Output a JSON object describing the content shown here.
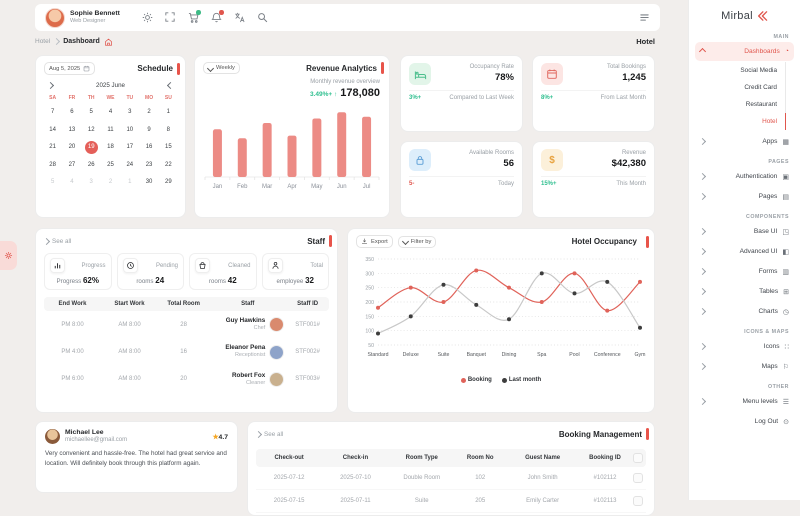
{
  "accent_color": "#e8544a",
  "header": {
    "user_name": "Sophie Bennett",
    "user_role": "Web Designer",
    "icons": [
      "sun-icon",
      "fullscreen-icon",
      "cart-icon",
      "notifications-icon",
      "translate-icon",
      "search-icon"
    ],
    "badges": {
      "cart-icon": "#3dba85",
      "notifications-icon": "#e0564d"
    },
    "menu_icon": "menu-icon"
  },
  "breadcrumb": {
    "parent": "Hotel",
    "current": "Dashboard"
  },
  "page_title": "Hotel",
  "sidebar": {
    "logo": "Mirbal",
    "sections": [
      {
        "label": "MAIN",
        "items": [
          {
            "label": "Dashboards",
            "icon": "◔",
            "expanded": true,
            "active": true,
            "children": [
              {
                "label": "Social Media"
              },
              {
                "label": "Credit Card"
              },
              {
                "label": "Restaurant"
              },
              {
                "label": "Hotel",
                "active": true
              }
            ]
          },
          {
            "label": "Apps",
            "icon": "▦",
            "chevron": true
          }
        ]
      },
      {
        "label": "PAGES",
        "items": [
          {
            "label": "Authentication",
            "icon": "▣",
            "chevron": true
          },
          {
            "label": "Pages",
            "icon": "▤",
            "chevron": true
          }
        ]
      },
      {
        "label": "COMPONENTS",
        "items": [
          {
            "label": "Base UI",
            "icon": "◳",
            "chevron": true
          },
          {
            "label": "Advanced UI",
            "icon": "◧",
            "chevron": true
          },
          {
            "label": "Forms",
            "icon": "▥",
            "chevron": true
          },
          {
            "label": "Tables",
            "icon": "⊞",
            "chevron": true
          },
          {
            "label": "Charts",
            "icon": "◷",
            "chevron": true
          }
        ]
      },
      {
        "label": "ICONS & MAPS",
        "items": [
          {
            "label": "Icons",
            "icon": "∷",
            "chevron": true
          },
          {
            "label": "Maps",
            "icon": "⚐",
            "chevron": true
          }
        ]
      },
      {
        "label": "OTHER",
        "items": [
          {
            "label": "Menu levels",
            "icon": "☰",
            "chevron": true
          },
          {
            "label": "Log Out",
            "icon": "⊙"
          }
        ]
      }
    ]
  },
  "schedule": {
    "title": "Schedule",
    "date_value": "Aug 5, 2025",
    "month_label": "2025 June",
    "weekdays": [
      "SA",
      "FR",
      "TH",
      "WE",
      "TU",
      "MO",
      "SU"
    ],
    "weeks": [
      [
        {
          "d": "7"
        },
        {
          "d": "6"
        },
        {
          "d": "5"
        },
        {
          "d": "4"
        },
        {
          "d": "3"
        },
        {
          "d": "2"
        },
        {
          "d": "1"
        }
      ],
      [
        {
          "d": "14"
        },
        {
          "d": "13"
        },
        {
          "d": "12"
        },
        {
          "d": "11"
        },
        {
          "d": "10"
        },
        {
          "d": "9"
        },
        {
          "d": "8"
        }
      ],
      [
        {
          "d": "21"
        },
        {
          "d": "20"
        },
        {
          "d": "19",
          "selected": true
        },
        {
          "d": "18"
        },
        {
          "d": "17"
        },
        {
          "d": "16"
        },
        {
          "d": "15"
        }
      ],
      [
        {
          "d": "28"
        },
        {
          "d": "27"
        },
        {
          "d": "26"
        },
        {
          "d": "25"
        },
        {
          "d": "24"
        },
        {
          "d": "23"
        },
        {
          "d": "22"
        }
      ],
      [
        {
          "d": "5",
          "muted": true
        },
        {
          "d": "4",
          "muted": true
        },
        {
          "d": "3",
          "muted": true
        },
        {
          "d": "2",
          "muted": true
        },
        {
          "d": "1",
          "muted": true
        },
        {
          "d": "30"
        },
        {
          "d": "29"
        }
      ]
    ]
  },
  "revenue": {
    "title": "Revenue Analytics",
    "filter_label": "Weekly",
    "subtitle": "Monthly revenue overview",
    "delta": "3.49%+",
    "arrow": "↑",
    "total": "178,080",
    "chart_data": {
      "type": "bar",
      "categories": [
        "Jan",
        "Feb",
        "Mar",
        "Apr",
        "May",
        "Jun",
        "Jul"
      ],
      "values": [
        53,
        43,
        60,
        46,
        65,
        72,
        67
      ],
      "ylim": [
        0,
        80
      ],
      "bar_color": "#ec8b85"
    }
  },
  "stats": [
    {
      "label": "Occupancy Rate",
      "value": "78%",
      "delta": "3%+",
      "delta_color": "#2fbf8f",
      "note": "Compared to Last Week",
      "icon": "bed-icon",
      "tint": "#e2f5e9",
      "icon_color": "#4cbf8d"
    },
    {
      "label": "Total Bookings",
      "value": "1,245",
      "delta": "8%+",
      "delta_color": "#2fbf8f",
      "note": "From Last Month",
      "icon": "calendar-icon",
      "tint": "#fce5e3",
      "icon_color": "#e0655c"
    },
    {
      "label": "Available Rooms",
      "value": "56",
      "delta": "5-",
      "delta_color": "#e0564d",
      "note": "Today",
      "icon": "lock-icon",
      "tint": "#ddeefb",
      "icon_color": "#5d9fd6"
    },
    {
      "label": "Revenue",
      "value": "$42,380",
      "delta": "15%+",
      "delta_color": "#2fbf8f",
      "note": "This Month",
      "icon": "dollar-icon",
      "tint": "#fcf0da",
      "icon_color": "#e8a23f"
    }
  ],
  "staff": {
    "title": "Staff",
    "see_all": "See all",
    "summary": [
      {
        "label": "Progress",
        "prefix": "Progress",
        "value": "62%",
        "icon": "progress-icon"
      },
      {
        "label": "Pending",
        "prefix": "rooms",
        "value": "24",
        "icon": "clock-icon"
      },
      {
        "label": "Cleaned",
        "prefix": "rooms",
        "value": "42",
        "icon": "bucket-icon"
      },
      {
        "label": "Total",
        "prefix": "employee",
        "value": "32",
        "icon": "person-icon"
      }
    ],
    "columns": [
      "End Work",
      "Start Work",
      "Total Room",
      "Staff",
      "Staff ID"
    ],
    "rows": [
      {
        "end_work": "PM 8:00",
        "start_work": "AM 8:00",
        "total_room": "28",
        "name": "Guy Hawkins",
        "role": "Chef",
        "staff_id": "STF001#",
        "avatar_color": "#d98a6e"
      },
      {
        "end_work": "PM 4:00",
        "start_work": "AM 8:00",
        "total_room": "16",
        "name": "Eleanor Pena",
        "role": "Receptionist",
        "staff_id": "STF002#",
        "avatar_color": "#8ea3c9"
      },
      {
        "end_work": "PM 6:00",
        "start_work": "AM 8:00",
        "total_room": "20",
        "name": "Robert Fox",
        "role": "Cleaner",
        "staff_id": "STF003#",
        "avatar_color": "#c9b08e"
      }
    ]
  },
  "occupancy": {
    "title": "Hotel Occupancy",
    "export_label": "Export",
    "filter_label": "Filter by",
    "chart_data": {
      "type": "line",
      "categories": [
        "Standard",
        "Deluxe",
        "Suite",
        "Banquet",
        "Dining",
        "Spa",
        "Pool",
        "Conference",
        "Gym"
      ],
      "series": [
        {
          "name": "Booking",
          "line_color": "#e0635a",
          "dot_color": "#e0635a",
          "values": [
            180,
            250,
            200,
            310,
            250,
            200,
            300,
            170,
            270
          ]
        },
        {
          "name": "Last month",
          "line_color": "#c8c8c8",
          "dot_color": "#3d3d3d",
          "values": [
            90,
            150,
            260,
            190,
            140,
            300,
            230,
            270,
            110
          ]
        }
      ],
      "ylim": [
        50,
        350
      ],
      "yticks": [
        350,
        300,
        250,
        200,
        150,
        100,
        50
      ],
      "grid": "dotted",
      "legend_position": "bottom"
    }
  },
  "review": {
    "name": "Michael Lee",
    "email": "michaellee@gmail.com",
    "star": "★",
    "rating": "4.7",
    "text": "Very convenient and hassle-free. The hotel had great service and location. Will definitely book through this platform again."
  },
  "booking": {
    "title": "Booking Management",
    "see_all": "See all",
    "columns": [
      "Check-out",
      "Check-in",
      "Room Type",
      "Room No",
      "Guest Name",
      "Booking ID"
    ],
    "rows": [
      {
        "check_out": "2025-07-12",
        "check_in": "2025-07-10",
        "room_type": "Double Room",
        "room_no": "102",
        "guest": "John Smith",
        "booking_id": "#102112"
      },
      {
        "check_out": "2025-07-15",
        "check_in": "2025-07-11",
        "room_type": "Suite",
        "room_no": "205",
        "guest": "Emily Carter",
        "booking_id": "#102113"
      }
    ]
  }
}
